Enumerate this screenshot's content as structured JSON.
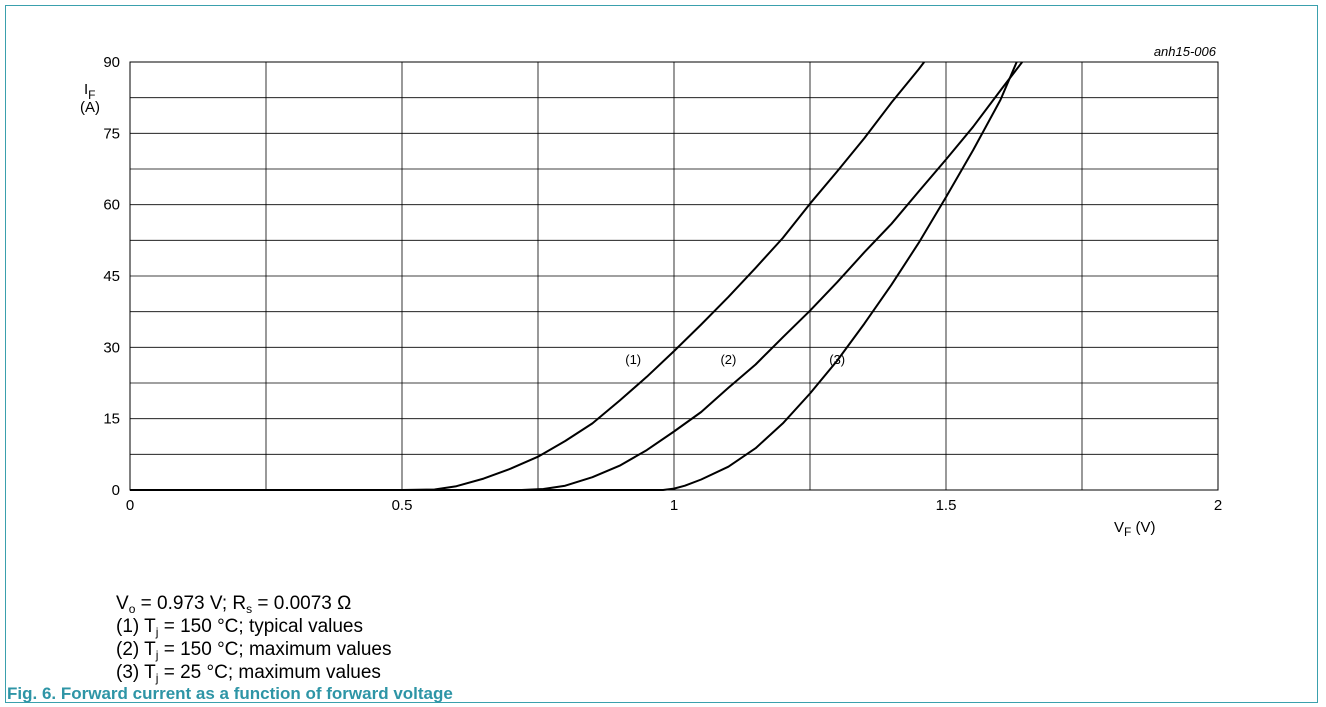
{
  "chart_data": {
    "type": "line",
    "id_label": "anh15-006",
    "ylabel": {
      "main": "I",
      "sub": "F",
      "unit": "(A)"
    },
    "xlabel": {
      "main": "V",
      "sub": "F",
      "unit": " (V)"
    },
    "xlim": [
      0,
      2
    ],
    "ylim": [
      0,
      90
    ],
    "x_ticks": [
      {
        "value": 0,
        "label": "0"
      },
      {
        "value": 0.5,
        "label": "0.5"
      },
      {
        "value": 1,
        "label": "1"
      },
      {
        "value": 1.5,
        "label": "1.5"
      },
      {
        "value": 2,
        "label": "2"
      }
    ],
    "y_ticks": [
      {
        "value": 0,
        "label": "0"
      },
      {
        "value": 15,
        "label": "15"
      },
      {
        "value": 30,
        "label": "30"
      },
      {
        "value": 45,
        "label": "45"
      },
      {
        "value": 60,
        "label": "60"
      },
      {
        "value": 75,
        "label": "75"
      },
      {
        "value": 90,
        "label": "90"
      }
    ],
    "x_minor_grid": [
      0.25,
      0.75,
      1.25,
      1.75
    ],
    "y_minor_grid": [
      7.5,
      22.5,
      37.5,
      52.5,
      67.5,
      82.5
    ],
    "grid": true,
    "series": [
      {
        "name": "(1)",
        "label_at": {
          "x": 0.925,
          "y": 26.5
        },
        "x": [
          0.0,
          0.5,
          0.56,
          0.6,
          0.65,
          0.7,
          0.75,
          0.8,
          0.85,
          0.9,
          0.95,
          1.0,
          1.05,
          1.1,
          1.15,
          1.2,
          1.25,
          1.3,
          1.35,
          1.4,
          1.45,
          1.46
        ],
        "y": [
          0.0,
          0.0,
          0.1,
          0.8,
          2.4,
          4.5,
          7.0,
          10.3,
          14.0,
          18.8,
          23.8,
          29.2,
          34.8,
          40.6,
          46.7,
          53.0,
          60.2,
          67.0,
          74.0,
          81.5,
          88.5,
          90.0
        ]
      },
      {
        "name": "(2)",
        "label_at": {
          "x": 1.1,
          "y": 26.5
        },
        "x": [
          0.0,
          0.72,
          0.76,
          0.8,
          0.85,
          0.9,
          0.95,
          1.0,
          1.05,
          1.1,
          1.15,
          1.2,
          1.25,
          1.3,
          1.35,
          1.4,
          1.45,
          1.5,
          1.55,
          1.6,
          1.64
        ],
        "y": [
          0.0,
          0.0,
          0.2,
          0.9,
          2.7,
          5.1,
          8.4,
          12.3,
          16.4,
          21.5,
          26.4,
          32.1,
          37.7,
          43.7,
          50.0,
          56.0,
          62.8,
          69.5,
          76.4,
          84.0,
          90.0
        ]
      },
      {
        "name": "(3)",
        "label_at": {
          "x": 1.3,
          "y": 26.5
        },
        "x": [
          0.0,
          0.98,
          1.0,
          1.02,
          1.05,
          1.1,
          1.15,
          1.2,
          1.25,
          1.3,
          1.35,
          1.4,
          1.45,
          1.5,
          1.55,
          1.6,
          1.63
        ],
        "y": [
          0.0,
          0.0,
          0.3,
          0.9,
          2.2,
          4.9,
          8.8,
          14.0,
          20.3,
          27.2,
          35.0,
          43.2,
          52.0,
          61.6,
          71.5,
          82.0,
          90.0
        ]
      }
    ]
  },
  "notes": [
    {
      "a": "V",
      "a_sub": "o",
      "b": " = 0.973 V; R",
      "b_sub": "s",
      "c": " = 0.0073 Ω"
    },
    {
      "a": "(1) T",
      "a_sub": "j",
      "b": " = 150 °C; typical values"
    },
    {
      "a": "(2) T",
      "a_sub": "j",
      "b": " = 150 °C; maximum values"
    },
    {
      "a": "(3) T",
      "a_sub": "j",
      "b": " = 25 °C; maximum values"
    }
  ],
  "figure_caption": "Fig. 6. Forward current as a function of forward voltage"
}
